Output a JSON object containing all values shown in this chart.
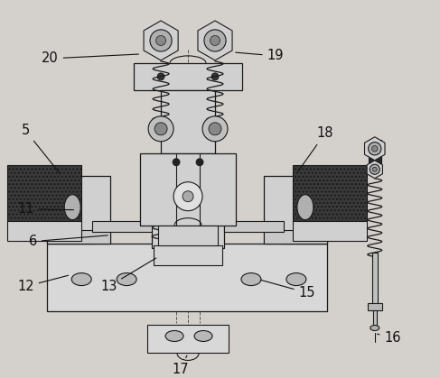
{
  "bg_color": "#d4d0cb",
  "line_color": "#1a1a1a",
  "label_color": "#111111",
  "font_size": 10.5
}
